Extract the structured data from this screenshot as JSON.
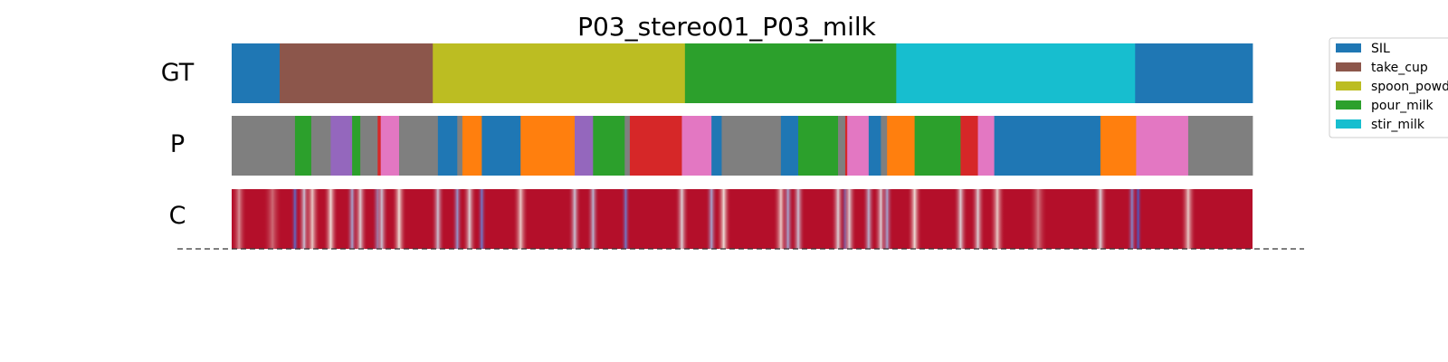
{
  "chart_data": {
    "type": "segmentation",
    "title": "P03_stereo01_P03_milk",
    "x_range": [
      0,
      1
    ],
    "legend": {
      "placement": "top-right",
      "entries": [
        {
          "label": "SIL",
          "color": "#1f77b4"
        },
        {
          "label": "take_cup",
          "color": "#8c564b"
        },
        {
          "label": "spoon_powd",
          "color": "#bcbd22"
        },
        {
          "label": "pour_milk",
          "color": "#2ca02c"
        },
        {
          "label": "stir_milk",
          "color": "#17becf"
        }
      ]
    },
    "rows": [
      {
        "label": "GT",
        "segments": [
          {
            "start": 0.0,
            "end": 0.047,
            "color": "#1f77b4"
          },
          {
            "start": 0.047,
            "end": 0.197,
            "color": "#8c564b"
          },
          {
            "start": 0.197,
            "end": 0.444,
            "color": "#bcbd22"
          },
          {
            "start": 0.444,
            "end": 0.651,
            "color": "#2ca02c"
          },
          {
            "start": 0.651,
            "end": 0.885,
            "color": "#17becf"
          },
          {
            "start": 0.885,
            "end": 1.0,
            "color": "#1f77b4"
          }
        ]
      },
      {
        "label": "P",
        "segments": [
          {
            "start": 0.0,
            "end": 0.062,
            "color": "#7f7f7f"
          },
          {
            "start": 0.062,
            "end": 0.078,
            "color": "#2ca02c"
          },
          {
            "start": 0.078,
            "end": 0.097,
            "color": "#7f7f7f"
          },
          {
            "start": 0.097,
            "end": 0.118,
            "color": "#9467bd"
          },
          {
            "start": 0.118,
            "end": 0.126,
            "color": "#2ca02c"
          },
          {
            "start": 0.126,
            "end": 0.143,
            "color": "#7f7f7f"
          },
          {
            "start": 0.143,
            "end": 0.146,
            "color": "#d62728"
          },
          {
            "start": 0.146,
            "end": 0.164,
            "color": "#e377c2"
          },
          {
            "start": 0.164,
            "end": 0.202,
            "color": "#7f7f7f"
          },
          {
            "start": 0.202,
            "end": 0.221,
            "color": "#1f77b4"
          },
          {
            "start": 0.221,
            "end": 0.226,
            "color": "#7f7f7f"
          },
          {
            "start": 0.226,
            "end": 0.245,
            "color": "#ff7f0e"
          },
          {
            "start": 0.245,
            "end": 0.283,
            "color": "#1f77b4"
          },
          {
            "start": 0.283,
            "end": 0.336,
            "color": "#ff7f0e"
          },
          {
            "start": 0.336,
            "end": 0.354,
            "color": "#9467bd"
          },
          {
            "start": 0.354,
            "end": 0.385,
            "color": "#2ca02c"
          },
          {
            "start": 0.385,
            "end": 0.39,
            "color": "#7f7f7f"
          },
          {
            "start": 0.39,
            "end": 0.441,
            "color": "#d62728"
          },
          {
            "start": 0.441,
            "end": 0.47,
            "color": "#e377c2"
          },
          {
            "start": 0.47,
            "end": 0.48,
            "color": "#1f77b4"
          },
          {
            "start": 0.48,
            "end": 0.538,
            "color": "#7f7f7f"
          },
          {
            "start": 0.538,
            "end": 0.555,
            "color": "#1f77b4"
          },
          {
            "start": 0.555,
            "end": 0.594,
            "color": "#2ca02c"
          },
          {
            "start": 0.594,
            "end": 0.601,
            "color": "#7f7f7f"
          },
          {
            "start": 0.601,
            "end": 0.603,
            "color": "#d62728"
          },
          {
            "start": 0.603,
            "end": 0.624,
            "color": "#e377c2"
          },
          {
            "start": 0.624,
            "end": 0.636,
            "color": "#1f77b4"
          },
          {
            "start": 0.636,
            "end": 0.642,
            "color": "#7f7f7f"
          },
          {
            "start": 0.642,
            "end": 0.669,
            "color": "#ff7f0e"
          },
          {
            "start": 0.669,
            "end": 0.714,
            "color": "#2ca02c"
          },
          {
            "start": 0.714,
            "end": 0.731,
            "color": "#d62728"
          },
          {
            "start": 0.731,
            "end": 0.747,
            "color": "#e377c2"
          },
          {
            "start": 0.747,
            "end": 0.851,
            "color": "#1f77b4"
          },
          {
            "start": 0.851,
            "end": 0.886,
            "color": "#ff7f0e"
          },
          {
            "start": 0.886,
            "end": 0.937,
            "color": "#e377c2"
          },
          {
            "start": 0.937,
            "end": 1.0,
            "color": "#7f7f7f"
          }
        ]
      },
      {
        "label": "C",
        "base_color": "#b40f2a",
        "dips": [
          {
            "x": 0.006,
            "level": 0.7
          },
          {
            "x": 0.04,
            "level": 0.78
          },
          {
            "x": 0.062,
            "level": 0.1
          },
          {
            "x": 0.071,
            "level": 0.4
          },
          {
            "x": 0.079,
            "level": 0.55
          },
          {
            "x": 0.097,
            "level": 0.5
          },
          {
            "x": 0.118,
            "level": 0.3
          },
          {
            "x": 0.126,
            "level": 0.45
          },
          {
            "x": 0.143,
            "level": 0.25
          },
          {
            "x": 0.147,
            "level": 0.4
          },
          {
            "x": 0.164,
            "level": 0.5
          },
          {
            "x": 0.202,
            "level": 0.4
          },
          {
            "x": 0.221,
            "level": 0.25
          },
          {
            "x": 0.233,
            "level": 0.45
          },
          {
            "x": 0.245,
            "level": 0.15
          },
          {
            "x": 0.283,
            "level": 0.55
          },
          {
            "x": 0.336,
            "level": 0.4
          },
          {
            "x": 0.354,
            "level": 0.35
          },
          {
            "x": 0.386,
            "level": 0.15
          },
          {
            "x": 0.441,
            "level": 0.45
          },
          {
            "x": 0.47,
            "level": 0.3
          },
          {
            "x": 0.482,
            "level": 0.5
          },
          {
            "x": 0.538,
            "level": 0.55
          },
          {
            "x": 0.545,
            "level": 0.3
          },
          {
            "x": 0.555,
            "level": 0.4
          },
          {
            "x": 0.594,
            "level": 0.45
          },
          {
            "x": 0.601,
            "level": 0.1
          },
          {
            "x": 0.605,
            "level": 0.45
          },
          {
            "x": 0.624,
            "level": 0.35
          },
          {
            "x": 0.636,
            "level": 0.45
          },
          {
            "x": 0.642,
            "level": 0.3
          },
          {
            "x": 0.669,
            "level": 0.5
          },
          {
            "x": 0.714,
            "level": 0.45
          },
          {
            "x": 0.731,
            "level": 0.45
          },
          {
            "x": 0.75,
            "level": 0.55
          },
          {
            "x": 0.79,
            "level": 0.75
          },
          {
            "x": 0.851,
            "level": 0.45
          },
          {
            "x": 0.882,
            "level": 0.2
          },
          {
            "x": 0.888,
            "level": 0.05
          },
          {
            "x": 0.937,
            "level": 0.55
          }
        ]
      }
    ]
  }
}
